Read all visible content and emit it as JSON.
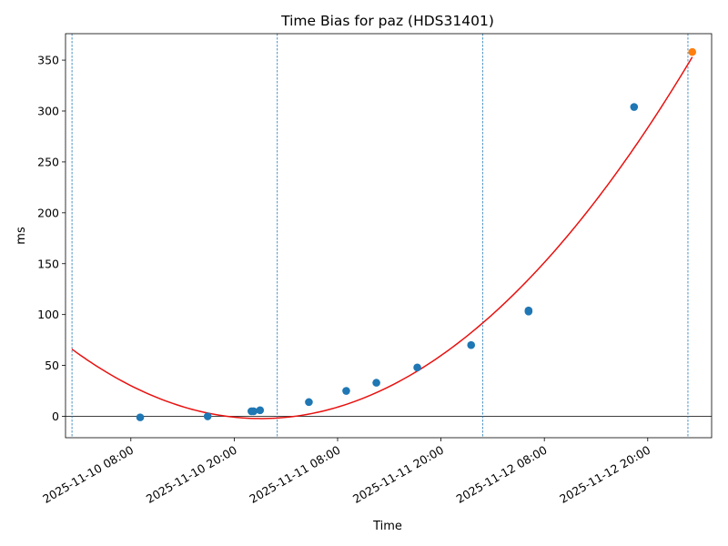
{
  "chart_data": {
    "type": "scatter",
    "title": "Time Bias for paz (HDS31401)",
    "xlabel": "Time",
    "ylabel": "ms",
    "xlim": [
      "2025-11-10 00:25",
      "2025-11-13 03:25"
    ],
    "ylim": [
      -21,
      376
    ],
    "xticks": [
      {
        "value": "2025-11-10 08:00",
        "label": "2025-11-10 08:00"
      },
      {
        "value": "2025-11-10 20:00",
        "label": "2025-11-10 20:00"
      },
      {
        "value": "2025-11-11 08:00",
        "label": "2025-11-11 08:00"
      },
      {
        "value": "2025-11-11 20:00",
        "label": "2025-11-11 20:00"
      },
      {
        "value": "2025-11-12 08:00",
        "label": "2025-11-12 08:00"
      },
      {
        "value": "2025-11-12 20:00",
        "label": "2025-11-12 20:00"
      }
    ],
    "yticks": [
      0,
      50,
      100,
      150,
      200,
      250,
      300,
      350
    ],
    "vertical_lines": [
      "2025-11-10 01:10",
      "2025-11-11 01:00",
      "2025-11-12 00:50",
      "2025-11-13 00:40"
    ],
    "zero_line": 0,
    "series": [
      {
        "color": "#1f77b4",
        "points": [
          {
            "x": "2025-11-10 09:05",
            "y": -1
          },
          {
            "x": "2025-11-10 16:55",
            "y": 0
          },
          {
            "x": "2025-11-10 22:00",
            "y": 5
          },
          {
            "x": "2025-11-10 22:15",
            "y": 5
          },
          {
            "x": "2025-11-10 23:00",
            "y": 6
          },
          {
            "x": "2025-11-11 04:40",
            "y": 14
          },
          {
            "x": "2025-11-11 09:00",
            "y": 25
          },
          {
            "x": "2025-11-11 12:30",
            "y": 33
          },
          {
            "x": "2025-11-11 17:15",
            "y": 48
          },
          {
            "x": "2025-11-11 23:30",
            "y": 70
          },
          {
            "x": "2025-11-12 06:10",
            "y": 103
          },
          {
            "x": "2025-11-12 06:10",
            "y": 104
          },
          {
            "x": "2025-11-12 18:25",
            "y": 304
          }
        ]
      },
      {
        "color": "#ff7f0e",
        "points": [
          {
            "x": "2025-11-13 01:10",
            "y": 358
          }
        ]
      }
    ],
    "fit_curve": {
      "type": "quadratic",
      "color": "#e8110f",
      "points": [
        {
          "x": "2025-11-10 01:10",
          "y": 66
        },
        {
          "x": "2025-11-10 22:00",
          "y": -2
        },
        {
          "x": "2025-11-13 01:10",
          "y": 353
        }
      ]
    }
  }
}
